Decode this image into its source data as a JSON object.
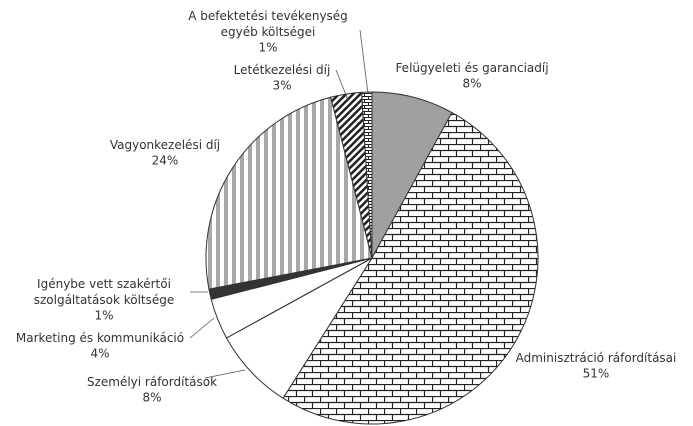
{
  "chart_data": {
    "type": "pie",
    "categories": [
      "Felügyeleti és garanciadíj",
      "Adminisztráció ráfordításai",
      "Személyi ráfordítások",
      "Marketing és kommunikáció",
      "Igénybe vett szakértői\nszolgáltatások költsége",
      "Vagyonkezelési díj",
      "Letétkezelési díj",
      "A befektetési tevékenység\negyéb költségei"
    ],
    "values": [
      8,
      51,
      8,
      4,
      1,
      24,
      3,
      1
    ],
    "value_labels": [
      "8%",
      "51%",
      "8%",
      "4%",
      "1%",
      "24%",
      "3%",
      "1%"
    ],
    "colors": [
      "#a0a0a0",
      "url(#brick)",
      "#ffffff",
      "#ffffff",
      "#333333",
      "url(#vstripe)",
      "url(#hatch)",
      "url(#hbrick)"
    ]
  }
}
